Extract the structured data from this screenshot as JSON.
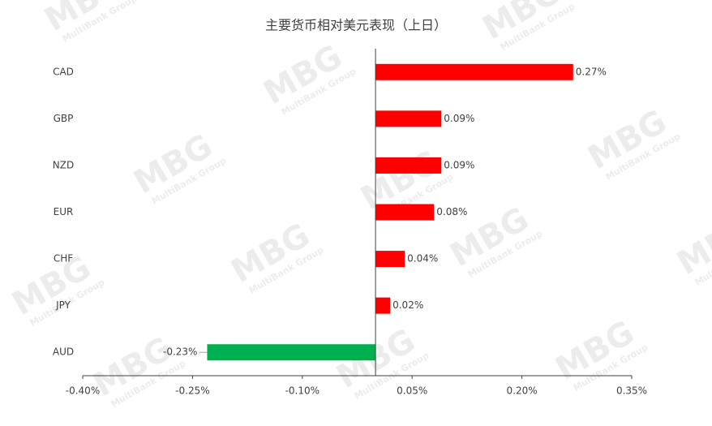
{
  "chart_data": {
    "type": "barh",
    "title": "主要货币相对美元表现（上日）",
    "watermark": "MBG",
    "watermark_subtitle": "MultiBank Group",
    "categories": [
      "CAD",
      "GBP",
      "NZD",
      "EUR",
      "CHF",
      "JPY",
      "AUD"
    ],
    "values": [
      0.27,
      0.09,
      0.09,
      0.08,
      0.04,
      0.02,
      -0.23
    ],
    "value_labels": [
      "0.27%",
      "0.09%",
      "0.09%",
      "0.08%",
      "0.04%",
      "0.02%",
      "-0.23%"
    ],
    "colors": [
      "#ff0000",
      "#ff0000",
      "#ff0000",
      "#ff0000",
      "#ff0000",
      "#ff0000",
      "#00b050"
    ],
    "xlim": [
      -0.4,
      0.35
    ],
    "xticks": [
      {
        "value": -0.4,
        "label": "-0.40%"
      },
      {
        "value": -0.25,
        "label": "-0.25%"
      },
      {
        "value": -0.1,
        "label": "-0.10%"
      },
      {
        "value": 0.05,
        "label": "0.05%"
      },
      {
        "value": 0.2,
        "label": "0.20%"
      },
      {
        "value": 0.35,
        "label": "0.35%"
      }
    ]
  }
}
